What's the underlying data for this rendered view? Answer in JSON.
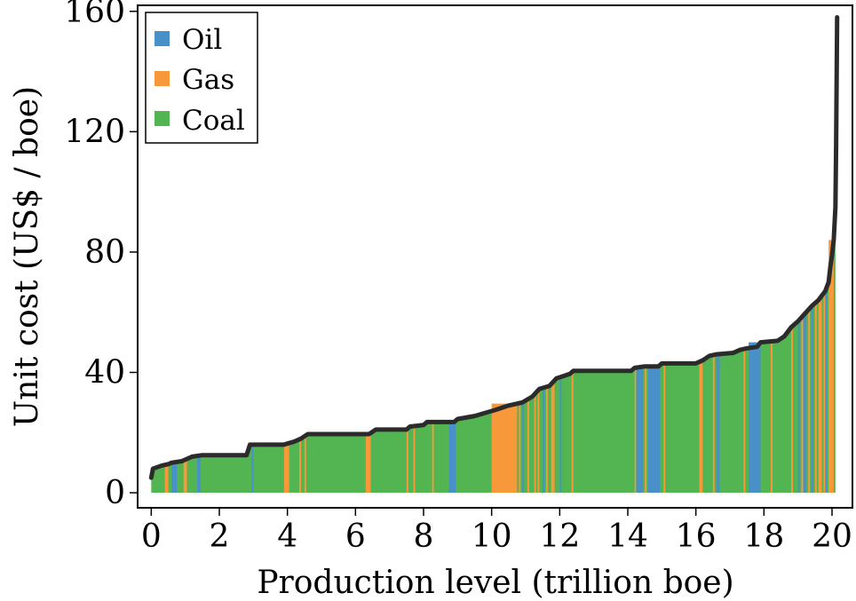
{
  "chart_data": {
    "type": "area",
    "title": "",
    "xlabel": "Production level (trillion boe)",
    "ylabel": "Unit cost (US$ / boe)",
    "xlim": [
      -0.4,
      20.6
    ],
    "ylim": [
      -5,
      162
    ],
    "xticks": [
      0,
      2,
      4,
      6,
      8,
      10,
      12,
      14,
      16,
      18,
      20
    ],
    "xtick_labels": [
      "0",
      "2",
      "4",
      "6",
      "8",
      "10",
      "12",
      "14",
      "16",
      "18",
      "20"
    ],
    "yticks": [
      0,
      40,
      80,
      120,
      160
    ],
    "ytick_labels": [
      "0",
      "40",
      "80",
      "120",
      "160"
    ],
    "legend": {
      "placement": "top-left",
      "entries": [
        {
          "name": "Oil",
          "color": "#4a90c8"
        },
        {
          "name": "Gas",
          "color": "#f7993b"
        },
        {
          "name": "Coal",
          "color": "#52b552"
        }
      ]
    },
    "colors": {
      "Oil": "#4a90c8",
      "Gas": "#f7993b",
      "Coal": "#52b552",
      "curve": "#2b2b2b"
    },
    "grid": false,
    "curve": [
      [
        0.0,
        5
      ],
      [
        0.05,
        8
      ],
      [
        0.3,
        9
      ],
      [
        0.5,
        9.5
      ],
      [
        0.6,
        10
      ],
      [
        0.9,
        10.5
      ],
      [
        1.0,
        11
      ],
      [
        1.2,
        12
      ],
      [
        1.5,
        12.5
      ],
      [
        2.8,
        12.5
      ],
      [
        2.9,
        16
      ],
      [
        3.9,
        16
      ],
      [
        4.2,
        17
      ],
      [
        4.4,
        18
      ],
      [
        4.6,
        19.5
      ],
      [
        6.4,
        19.5
      ],
      [
        6.6,
        21
      ],
      [
        7.5,
        21
      ],
      [
        7.6,
        22
      ],
      [
        8.0,
        22.5
      ],
      [
        8.1,
        23.5
      ],
      [
        8.9,
        23.5
      ],
      [
        9.0,
        24.5
      ],
      [
        9.5,
        25.5
      ],
      [
        9.8,
        26.5
      ],
      [
        10.1,
        27.5
      ],
      [
        10.5,
        29
      ],
      [
        10.9,
        30
      ],
      [
        11.2,
        32
      ],
      [
        11.4,
        34.5
      ],
      [
        11.7,
        35.5
      ],
      [
        11.9,
        38
      ],
      [
        12.3,
        39.5
      ],
      [
        12.4,
        40.5
      ],
      [
        14.1,
        40.5
      ],
      [
        14.2,
        41.5
      ],
      [
        14.5,
        42
      ],
      [
        14.9,
        42
      ],
      [
        15.0,
        43
      ],
      [
        16.0,
        43
      ],
      [
        16.2,
        44
      ],
      [
        16.4,
        45.5
      ],
      [
        16.6,
        46
      ],
      [
        17.1,
        46.5
      ],
      [
        17.3,
        47.5
      ],
      [
        17.5,
        48
      ],
      [
        17.8,
        48.5
      ],
      [
        17.9,
        50
      ],
      [
        18.4,
        50.5
      ],
      [
        18.6,
        52
      ],
      [
        18.8,
        55
      ],
      [
        19.0,
        57
      ],
      [
        19.2,
        59.5
      ],
      [
        19.4,
        62
      ],
      [
        19.6,
        64
      ],
      [
        19.8,
        67
      ],
      [
        19.9,
        70
      ],
      [
        19.95,
        75
      ],
      [
        20.0,
        79
      ],
      [
        20.05,
        84
      ],
      [
        20.1,
        95
      ],
      [
        20.12,
        115
      ],
      [
        20.15,
        158
      ]
    ],
    "series": [
      {
        "name": "Oil",
        "bands": [
          [
            0.6,
            0.75
          ],
          [
            1.35,
            1.45
          ],
          [
            2.95,
            3.0
          ],
          [
            8.75,
            8.95
          ],
          [
            10.9,
            10.95
          ],
          [
            11.5,
            11.55
          ],
          [
            12.0,
            12.05
          ],
          [
            14.25,
            14.45
          ],
          [
            14.6,
            14.95
          ],
          [
            16.6,
            16.7
          ],
          [
            17.55,
            17.9
          ],
          [
            19.0,
            19.05
          ],
          [
            19.15,
            19.25
          ],
          [
            19.4,
            19.45
          ],
          [
            19.8,
            19.85
          ]
        ]
      },
      {
        "name": "Gas",
        "bands": [
          [
            0.4,
            0.5
          ],
          [
            0.95,
            1.05
          ],
          [
            3.9,
            4.05
          ],
          [
            4.35,
            4.4
          ],
          [
            4.5,
            4.55
          ],
          [
            6.3,
            6.45
          ],
          [
            7.5,
            7.55
          ],
          [
            7.7,
            7.75
          ],
          [
            8.25,
            8.3
          ],
          [
            10.0,
            10.75
          ],
          [
            10.8,
            10.85
          ],
          [
            11.05,
            11.1
          ],
          [
            11.25,
            11.3
          ],
          [
            11.35,
            11.4
          ],
          [
            11.6,
            11.65
          ],
          [
            11.75,
            11.85
          ],
          [
            12.35,
            12.4
          ],
          [
            14.2,
            14.22
          ],
          [
            14.5,
            14.55
          ],
          [
            15.05,
            15.1
          ],
          [
            16.1,
            16.2
          ],
          [
            16.5,
            16.55
          ],
          [
            17.4,
            17.45
          ],
          [
            18.2,
            18.25
          ],
          [
            18.8,
            18.85
          ],
          [
            19.1,
            19.15
          ],
          [
            19.3,
            19.35
          ],
          [
            19.5,
            19.55
          ],
          [
            19.6,
            19.7
          ],
          [
            19.75,
            19.8
          ],
          [
            19.9,
            20.05
          ]
        ]
      }
    ],
    "base_series": "Coal"
  }
}
